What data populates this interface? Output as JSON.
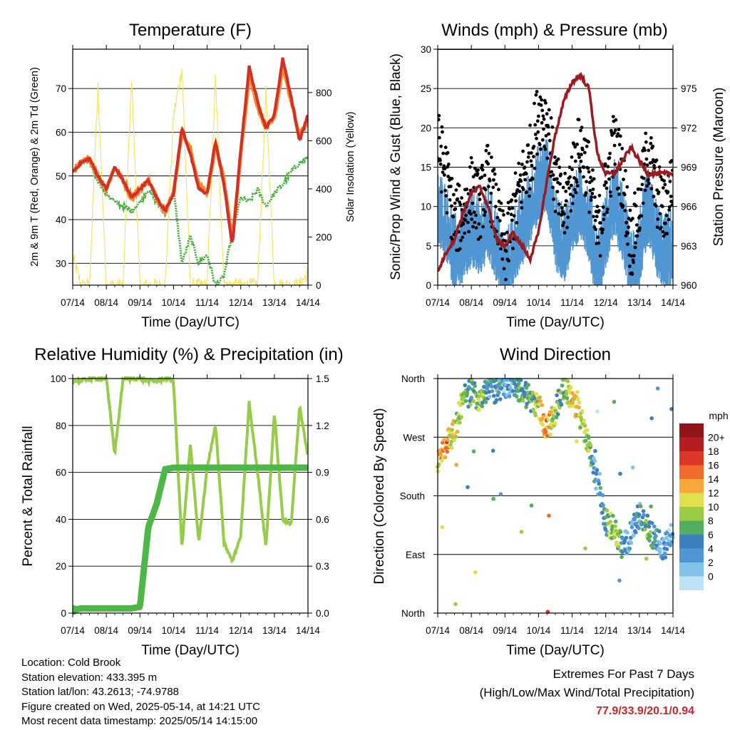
{
  "days": [
    "07/14",
    "08/14",
    "09/14",
    "10/14",
    "11/14",
    "12/14",
    "13/14",
    "14/14"
  ],
  "xlabel": "Time (Day/UTC)",
  "colors": {
    "temp2m": "#d42f27",
    "temp9m": "#f6892d",
    "dewpoint": "#44ae3d",
    "solar": "#f5e35b",
    "gust": "#000000",
    "wind": "#4f96d2",
    "pressure": "#9b1a1d",
    "rh": "#96cc4a",
    "precip": "#4db848"
  },
  "panels": {
    "temperature": {
      "title": "Temperature (F)",
      "ylabel_left": "2m & 9m T (Red, Orange) & 2m Td (Green)",
      "ylabel_right": "Solar Insolation (Yellow)",
      "yticks_left": [
        "30",
        "40",
        "50",
        "60",
        "70"
      ],
      "yticks_right": [
        "0",
        "200",
        "400",
        "600",
        "800"
      ]
    },
    "winds": {
      "title": "Winds (mph) & Pressure (mb)",
      "ylabel_left": "Sonic/Prop Wind & Gust (Blue, Black)",
      "ylabel_right": "Station Pressure (Maroon)",
      "yticks_left": [
        "0",
        "5",
        "10",
        "15",
        "20",
        "25",
        "30"
      ],
      "yticks_right": [
        "960",
        "963",
        "966",
        "969",
        "972",
        "975"
      ]
    },
    "humidity": {
      "title": "Relative Humidity (%) & Precipitation (in)",
      "ylabel_left": "Percent & Total Rainfall",
      "yticks_left": [
        "0",
        "20",
        "40",
        "60",
        "80",
        "100"
      ],
      "yticks_right": [
        "0.0",
        "0.3",
        "0.6",
        "0.9",
        "1.2",
        "1.5"
      ]
    },
    "direction": {
      "title": "Wind Direction",
      "ylabel_left": "Direction (Colored By Speed)",
      "yticks_left": [
        "North",
        "East",
        "South",
        "West",
        "North"
      ],
      "legend_title": "mph",
      "legend_labels": [
        "0",
        "2",
        "4",
        "6",
        "8",
        "10",
        "12",
        "14",
        "16",
        "18",
        "20+"
      ],
      "legend_colors": [
        "#bde4f6",
        "#85c2ea",
        "#4f96d2",
        "#3e7fbe",
        "#55ad5e",
        "#9acb45",
        "#dfe04a",
        "#f6a83d",
        "#ef6a2c",
        "#dd3526",
        "#b51e20",
        "#8e1619"
      ]
    }
  },
  "info": {
    "location": "Location: Cold Brook",
    "elevation": "Station elevation: 433.395 m",
    "latlon": "Station lat/lon: 43.2613; -74.9788",
    "created": "Figure created on Wed, 2025-05-14, at 14:21 UTC",
    "recent": "Most recent data timestamp: 2025/05/14 14:15:00"
  },
  "extremes": {
    "title": "Extremes For Past 7 Days",
    "subtitle": "(High/Low/Max Wind/Total Precipitation)",
    "values": "77.9/33.9/20.1/0.94"
  },
  "chart_data": [
    {
      "type": "line",
      "title": "Temperature (F)",
      "xlabel": "Time (Day/UTC)",
      "ylabel": "2m & 9m T (Red, Orange) & 2m Td (Green)",
      "ylabel_right": "Solar Insolation (Yellow)",
      "ylim": [
        25,
        79
      ],
      "ylim_right": [
        0,
        980
      ],
      "x": [
        0,
        0.25,
        0.5,
        0.75,
        1,
        1.25,
        1.5,
        1.75,
        2,
        2.25,
        2.5,
        2.75,
        3,
        3.25,
        3.5,
        3.75,
        4,
        4.25,
        4.5,
        4.75,
        5,
        5.25,
        5.5,
        5.75,
        6,
        6.25,
        6.5,
        6.75,
        7
      ],
      "series": [
        {
          "name": "2m T",
          "values": [
            51,
            53,
            54,
            50,
            47,
            52,
            49,
            45,
            47,
            49,
            45,
            42,
            46,
            61,
            55,
            47,
            46,
            58,
            48,
            34,
            56,
            75,
            67,
            61,
            64,
            77,
            68,
            58,
            64
          ]
        },
        {
          "name": "9m T",
          "values": [
            51,
            53,
            54,
            50,
            47,
            52,
            49,
            45,
            47,
            49,
            45,
            42,
            46,
            60,
            56,
            48,
            46,
            57,
            49,
            35,
            55,
            73,
            66,
            61,
            63,
            75,
            67,
            59,
            63
          ]
        },
        {
          "name": "2m Td",
          "values": [
            51,
            53,
            53,
            49,
            46,
            44,
            43,
            42,
            44,
            47,
            44,
            41,
            47,
            30,
            36,
            30,
            32,
            25,
            27,
            37,
            45,
            44,
            47,
            43,
            46,
            48,
            51,
            53,
            54
          ]
        },
        {
          "name": "Solar Insolation",
          "axis": "right",
          "values": [
            120,
            0,
            0,
            820,
            0,
            0,
            0,
            860,
            0,
            0,
            0,
            0,
            700,
            900,
            0,
            0,
            0,
            860,
            0,
            0,
            0,
            0,
            0,
            800,
            0,
            0,
            0,
            0,
            50
          ]
        }
      ]
    },
    {
      "type": "line",
      "title": "Winds (mph) & Pressure (mb)",
      "xlabel": "Time (Day/UTC)",
      "ylabel": "Sonic/Prop Wind & Gust (Blue, Black)",
      "ylabel_right": "Station Pressure (Maroon)",
      "ylim": [
        0,
        30
      ],
      "ylim_right": [
        960,
        978
      ],
      "x": [
        0,
        0.25,
        0.5,
        0.75,
        1,
        1.25,
        1.5,
        1.75,
        2,
        2.25,
        2.5,
        2.75,
        3,
        3.25,
        3.5,
        3.75,
        4,
        4.25,
        4.5,
        4.75,
        5,
        5.25,
        5.5,
        5.75,
        6,
        6.25,
        6.5,
        6.75,
        7
      ],
      "series": [
        {
          "name": "Gust",
          "values": [
            18,
            14,
            8,
            9,
            12,
            10,
            14,
            9,
            4,
            9,
            13,
            16,
            22,
            21,
            13,
            9,
            14,
            18,
            14,
            6,
            12,
            18,
            14,
            5,
            10,
            17,
            12,
            9,
            14
          ]
        },
        {
          "name": "Wind",
          "values": [
            11,
            9,
            5,
            6,
            8,
            7,
            9,
            6,
            2,
            6,
            8,
            11,
            14,
            15,
            8,
            6,
            9,
            12,
            9,
            3,
            8,
            12,
            9,
            3,
            6,
            11,
            7,
            5,
            6
          ]
        },
        {
          "name": "Station Pressure",
          "axis": "right",
          "values": [
            961,
            962.5,
            963.5,
            965.5,
            967,
            967.5,
            966,
            963.5,
            963,
            964,
            963,
            962,
            964,
            968,
            971.5,
            974,
            975.5,
            976,
            975,
            970,
            968.5,
            968.5,
            969.5,
            970.5,
            969.5,
            968.5,
            968.5,
            968.5,
            968.5
          ]
        }
      ]
    },
    {
      "type": "line",
      "title": "Relative Humidity (%) & Precipitation (in)",
      "xlabel": "Time (Day/UTC)",
      "ylabel": "Percent & Total Rainfall",
      "ylim": [
        0,
        100
      ],
      "ylim_right": [
        0,
        1.5
      ],
      "x": [
        0,
        0.25,
        0.5,
        0.75,
        1,
        1.25,
        1.5,
        1.75,
        2,
        2.25,
        2.5,
        2.75,
        3,
        3.25,
        3.5,
        3.75,
        4,
        4.25,
        4.5,
        4.75,
        5,
        5.25,
        5.5,
        5.75,
        6,
        6.25,
        6.5,
        6.75,
        7
      ],
      "series": [
        {
          "name": "Relative Humidity",
          "values": [
            99,
            99,
            100,
            100,
            100,
            68,
            100,
            100,
            100,
            99,
            99,
            100,
            99,
            28,
            72,
            30,
            62,
            80,
            30,
            22,
            33,
            90,
            60,
            28,
            85,
            40,
            38,
            88,
            67
          ]
        },
        {
          "name": "Precipitation",
          "axis": "right",
          "values": [
            0.02,
            0.03,
            0.03,
            0.03,
            0.03,
            0.03,
            0.03,
            0.03,
            0.04,
            0.55,
            0.7,
            0.92,
            0.93,
            0.93,
            0.93,
            0.93,
            0.93,
            0.93,
            0.93,
            0.93,
            0.93,
            0.93,
            0.93,
            0.93,
            0.93,
            0.93,
            0.93,
            0.93,
            0.93
          ]
        }
      ]
    },
    {
      "type": "scatter",
      "title": "Wind Direction",
      "xlabel": "Time (Day/UTC)",
      "ylabel": "Direction (Colored By Speed)",
      "ylim": [
        0,
        360
      ],
      "yticks": [
        [
          "North",
          0
        ],
        [
          "East",
          90
        ],
        [
          "South",
          180
        ],
        [
          "West",
          270
        ],
        [
          "North",
          360
        ]
      ],
      "legend": "mph",
      "x": [
        0,
        0.25,
        0.5,
        0.75,
        1,
        1.25,
        1.5,
        1.75,
        2,
        2.25,
        2.5,
        2.75,
        3,
        3.25,
        3.5,
        3.75,
        4,
        4.25,
        4.5,
        4.75,
        5,
        5.25,
        5.5,
        5.75,
        6,
        6.25,
        6.5,
        6.75,
        7
      ],
      "series": [
        {
          "name": "Direction",
          "values": [
            230,
            260,
            280,
            330,
            340,
            330,
            345,
            340,
            350,
            355,
            340,
            330,
            320,
            280,
            310,
            350,
            330,
            300,
            260,
            200,
            140,
            130,
            100,
            120,
            150,
            130,
            110,
            100,
            120
          ]
        },
        {
          "name": "Speed",
          "values": [
            14,
            16,
            12,
            10,
            8,
            12,
            6,
            8,
            4,
            6,
            9,
            8,
            12,
            16,
            10,
            8,
            14,
            12,
            10,
            4,
            8,
            12,
            6,
            4,
            6,
            10,
            6,
            4,
            5
          ]
        }
      ]
    }
  ]
}
